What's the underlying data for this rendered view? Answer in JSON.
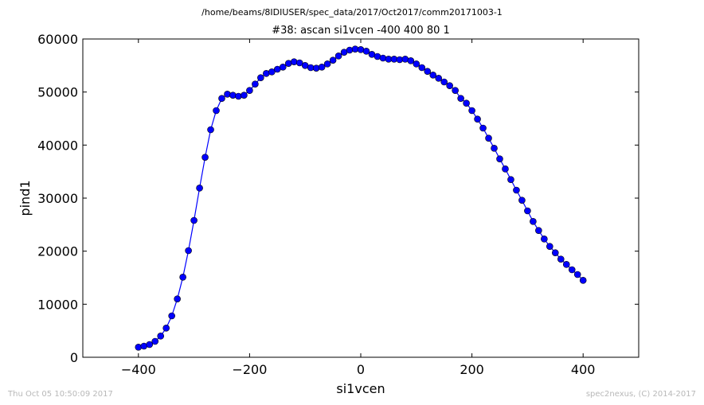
{
  "header": {
    "path": "/home/beams/8IDIUSER/spec_data/2017/Oct2017/comm20171003-1"
  },
  "footer": {
    "timestamp": "Thu Oct 05 10:50:09 2017",
    "credit": "spec2nexus, (C) 2014-2017"
  },
  "chart_data": {
    "type": "line",
    "title": "#38: ascan  si1vcen -400 400  80 1",
    "xlabel": "si1vcen",
    "ylabel": "pind1",
    "xlim": [
      -500,
      500
    ],
    "ylim": [
      0,
      60000
    ],
    "xticks": [
      -400,
      -200,
      0,
      200,
      400
    ],
    "xtick_labels": [
      "−400",
      "−200",
      "0",
      "200",
      "400"
    ],
    "yticks": [
      0,
      10000,
      20000,
      30000,
      40000,
      50000,
      60000
    ],
    "ytick_labels": [
      "0",
      "10000",
      "20000",
      "30000",
      "40000",
      "50000",
      "60000"
    ],
    "grid": false,
    "series_color": "#0000ff",
    "marker": "circle",
    "x": [
      -400,
      -390,
      -380,
      -370,
      -360,
      -350,
      -340,
      -330,
      -320,
      -310,
      -300,
      -290,
      -280,
      -270,
      -260,
      -250,
      -240,
      -230,
      -220,
      -210,
      -200,
      -190,
      -180,
      -170,
      -160,
      -150,
      -140,
      -130,
      -120,
      -110,
      -100,
      -90,
      -80,
      -70,
      -60,
      -50,
      -40,
      -30,
      -20,
      -10,
      0,
      10,
      20,
      30,
      40,
      50,
      60,
      70,
      80,
      90,
      100,
      110,
      120,
      130,
      140,
      150,
      160,
      170,
      180,
      190,
      200,
      210,
      220,
      230,
      240,
      250,
      260,
      270,
      280,
      290,
      300,
      310,
      320,
      330,
      340,
      350,
      360,
      370,
      380,
      390,
      400
    ],
    "y": [
      1900,
      2100,
      2400,
      3000,
      4000,
      5500,
      7800,
      11000,
      15100,
      20100,
      25800,
      31900,
      37700,
      42900,
      46500,
      48800,
      49600,
      49400,
      49200,
      49400,
      50300,
      51500,
      52700,
      53500,
      53800,
      54300,
      54700,
      55400,
      55700,
      55500,
      55000,
      54600,
      54500,
      54700,
      55300,
      56000,
      56800,
      57500,
      57900,
      58100,
      58000,
      57700,
      57100,
      56700,
      56400,
      56200,
      56200,
      56100,
      56200,
      55900,
      55300,
      54600,
      53900,
      53200,
      52600,
      51900,
      51200,
      50300,
      48800,
      47900,
      46500,
      44900,
      43200,
      41300,
      39400,
      37400,
      35500,
      33500,
      31500,
      29600,
      27600,
      25600,
      23900,
      22300,
      20900,
      19700,
      18500,
      17500,
      16500,
      15600,
      14500
    ]
  }
}
